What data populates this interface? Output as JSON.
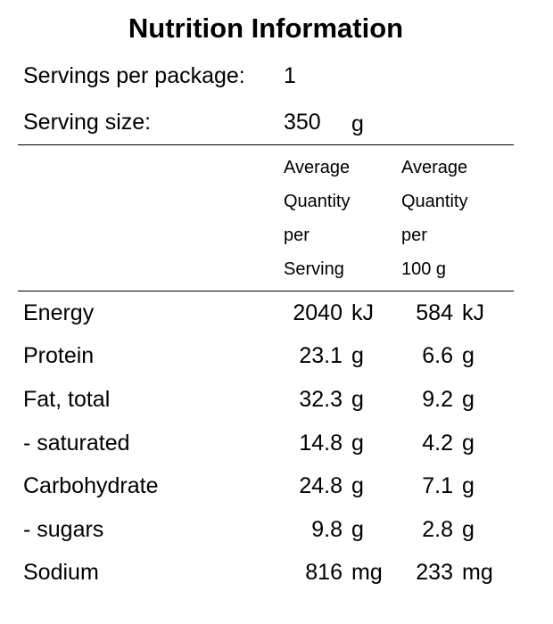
{
  "title": "Nutrition Information",
  "servings_per_package": {
    "label": "Servings per package:",
    "value": "1"
  },
  "serving_size": {
    "label": "Serving size:",
    "value": "350",
    "unit": "g"
  },
  "column_headers": {
    "per_serving": [
      "Average",
      "Quantity",
      "per",
      "Serving"
    ],
    "per_100g": [
      "Average",
      "Quantity",
      "per",
      "100 g"
    ]
  },
  "rows": [
    {
      "label": "Energy",
      "serving_value": "2040",
      "serving_unit": "kJ",
      "per100_value": "584",
      "per100_unit": "kJ"
    },
    {
      "label": "Protein",
      "serving_value": "23.1",
      "serving_unit": "g",
      "per100_value": "6.6",
      "per100_unit": "g"
    },
    {
      "label": "Fat, total",
      "serving_value": "32.3",
      "serving_unit": "g",
      "per100_value": "9.2",
      "per100_unit": "g"
    },
    {
      "label": "- saturated",
      "serving_value": "14.8",
      "serving_unit": "g",
      "per100_value": "4.2",
      "per100_unit": "g"
    },
    {
      "label": "Carbohydrate",
      "serving_value": "24.8",
      "serving_unit": "g",
      "per100_value": "7.1",
      "per100_unit": "g"
    },
    {
      "label": "- sugars",
      "serving_value": "9.8",
      "serving_unit": "g",
      "per100_value": "2.8",
      "per100_unit": "g"
    },
    {
      "label": "Sodium",
      "serving_value": "816",
      "serving_unit": "mg",
      "per100_value": "233",
      "per100_unit": "mg"
    }
  ]
}
